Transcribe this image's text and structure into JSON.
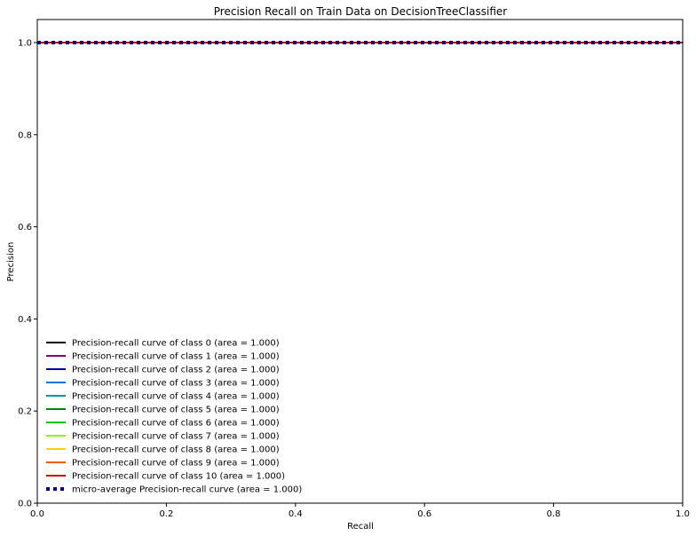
{
  "chart_data": {
    "type": "line",
    "title": "Precision Recall on Train Data on DecisionTreeClassifier",
    "xlabel": "Recall",
    "ylabel": "Precision",
    "xlim": [
      0.0,
      1.0
    ],
    "ylim": [
      0.0,
      1.05
    ],
    "xticks": [
      0.0,
      0.2,
      0.4,
      0.6,
      0.8,
      1.0
    ],
    "yticks": [
      0.0,
      0.2,
      0.4,
      0.6,
      0.8,
      1.0
    ],
    "xtick_labels": [
      "0.0",
      "0.2",
      "0.4",
      "0.6",
      "0.8",
      "1.0"
    ],
    "ytick_labels": [
      "0.0",
      "0.2",
      "0.4",
      "0.6",
      "0.8",
      "1.0"
    ],
    "grid": false,
    "legend_position": "lower-left",
    "series": [
      {
        "name": "Precision-recall curve of class 0 (area = 1.000)",
        "color": "#000000",
        "style": "solid",
        "x": [
          0.0,
          1.0
        ],
        "y": [
          1.0,
          1.0
        ]
      },
      {
        "name": "Precision-recall curve of class 1 (area = 1.000)",
        "color": "#7f007f",
        "style": "solid",
        "x": [
          0.0,
          1.0
        ],
        "y": [
          1.0,
          1.0
        ]
      },
      {
        "name": "Precision-recall curve of class 2 (area = 1.000)",
        "color": "#00009a",
        "style": "solid",
        "x": [
          0.0,
          1.0
        ],
        "y": [
          1.0,
          1.0
        ]
      },
      {
        "name": "Precision-recall curve of class 3 (area = 1.000)",
        "color": "#0076dd",
        "style": "solid",
        "x": [
          0.0,
          1.0
        ],
        "y": [
          1.0,
          1.0
        ]
      },
      {
        "name": "Precision-recall curve of class 4 (area = 1.000)",
        "color": "#009999",
        "style": "solid",
        "x": [
          0.0,
          1.0
        ],
        "y": [
          1.0,
          1.0
        ]
      },
      {
        "name": "Precision-recall curve of class 5 (area = 1.000)",
        "color": "#008600",
        "style": "solid",
        "x": [
          0.0,
          1.0
        ],
        "y": [
          1.0,
          1.0
        ]
      },
      {
        "name": "Precision-recall curve of class 6 (area = 1.000)",
        "color": "#00cc00",
        "style": "solid",
        "x": [
          0.0,
          1.0
        ],
        "y": [
          1.0,
          1.0
        ]
      },
      {
        "name": "Precision-recall curve of class 7 (area = 1.000)",
        "color": "#7ffb00",
        "style": "solid",
        "x": [
          0.0,
          1.0
        ],
        "y": [
          1.0,
          1.0
        ]
      },
      {
        "name": "Precision-recall curve of class 8 (area = 1.000)",
        "color": "#f1d600",
        "style": "solid",
        "x": [
          0.0,
          1.0
        ],
        "y": [
          1.0,
          1.0
        ]
      },
      {
        "name": "Precision-recall curve of class 9 (area = 1.000)",
        "color": "#ff5a00",
        "style": "solid",
        "x": [
          0.0,
          1.0
        ],
        "y": [
          1.0,
          1.0
        ]
      },
      {
        "name": "Precision-recall curve of class 10 (area = 1.000)",
        "color": "#cc0000",
        "style": "solid",
        "x": [
          0.0,
          1.0
        ],
        "y": [
          1.0,
          1.0
        ]
      },
      {
        "name": "micro-average Precision-recall curve (area = 1.000)",
        "color": "#000080",
        "style": "dotted",
        "x": [
          0.0,
          1.0
        ],
        "y": [
          1.0,
          1.0
        ]
      }
    ]
  }
}
